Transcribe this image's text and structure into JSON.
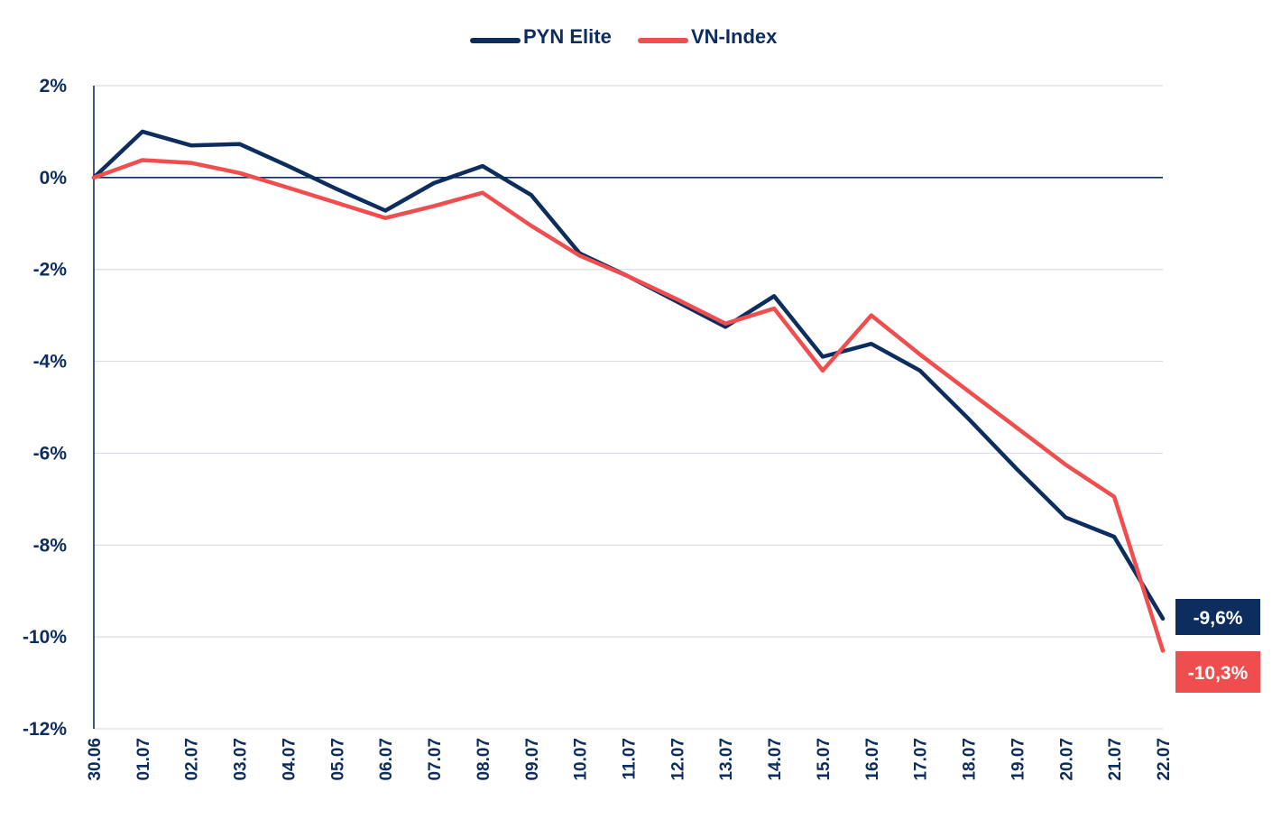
{
  "chart_data": {
    "type": "line",
    "title": "",
    "xlabel": "",
    "ylabel": "",
    "categories": [
      "30.06",
      "01.07",
      "02.07",
      "03.07",
      "04.07",
      "05.07",
      "06.07",
      "07.07",
      "08.07",
      "09.07",
      "10.07",
      "11.07",
      "12.07",
      "13.07",
      "14.07",
      "15.07",
      "16.07",
      "17.07",
      "18.07",
      "19.07",
      "20.07",
      "21.07",
      "22.07"
    ],
    "ylim": [
      -12,
      2
    ],
    "yticks": [
      2,
      0,
      -2,
      -4,
      -6,
      -8,
      -10,
      -12
    ],
    "ytick_labels": [
      "2%",
      "0%",
      "-2%",
      "-4%",
      "-6%",
      "-8%",
      "-10%",
      "-12%"
    ],
    "grid": true,
    "legend_position": "top-center",
    "series": [
      {
        "name": "PYN Elite",
        "color": "#0c2d5e",
        "values": [
          0,
          1.0,
          0.7,
          0.73,
          0.25,
          -0.25,
          -0.72,
          -0.12,
          0.25,
          -0.38,
          -1.65,
          -2.15,
          -2.7,
          -3.25,
          -2.58,
          -3.9,
          -3.62,
          -4.2,
          -5.25,
          -6.35,
          -7.4,
          -7.82,
          -9.6
        ],
        "end_label": "-9,6%"
      },
      {
        "name": "VN-Index",
        "color": "#f04e4e",
        "values": [
          0,
          0.38,
          0.32,
          0.1,
          -0.22,
          -0.55,
          -0.88,
          -0.62,
          -0.33,
          -1.05,
          -1.7,
          -2.15,
          -2.65,
          -3.18,
          -2.85,
          -4.2,
          -3.0,
          -3.85,
          -4.65,
          -5.45,
          -6.25,
          -6.95,
          -10.3
        ],
        "end_label": "-10,3%"
      }
    ]
  }
}
